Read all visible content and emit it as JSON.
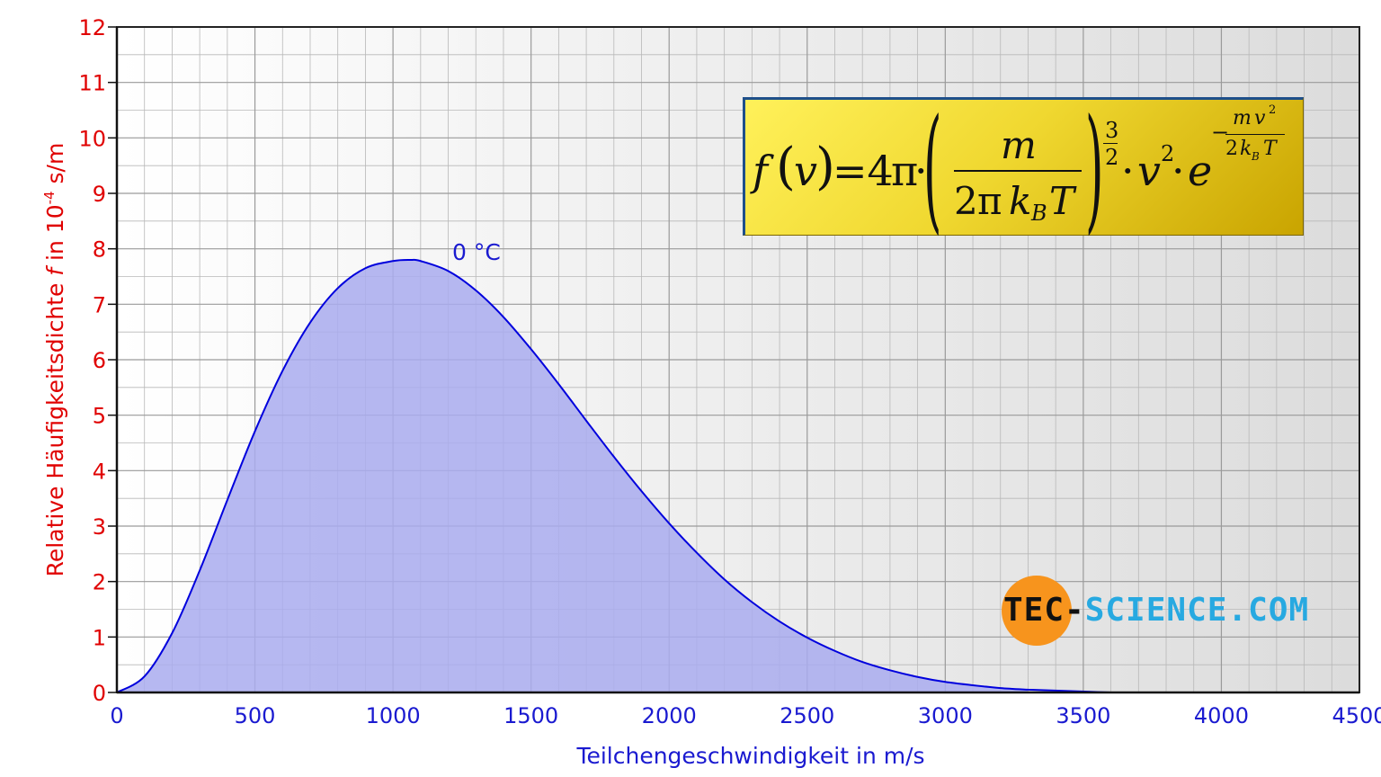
{
  "chart_data": {
    "type": "area",
    "title": "",
    "xlabel": "Teilchengeschwindigkeit in m/s",
    "ylabel_parts": [
      "Relative Häufigkeitsdichte ",
      "f",
      " in 10",
      "-4",
      " s/m"
    ],
    "xlim": [
      0,
      4500
    ],
    "ylim": [
      0,
      12
    ],
    "x_ticks": [
      "0",
      "500",
      "1000",
      "1500",
      "2000",
      "2500",
      "3000",
      "3500",
      "4000",
      "4500"
    ],
    "y_ticks": [
      "0",
      "1",
      "2",
      "3",
      "4",
      "5",
      "6",
      "7",
      "8",
      "9",
      "10",
      "11",
      "12"
    ],
    "grid": true,
    "series": [
      {
        "name": "0 °C",
        "x": [
          0,
          100,
          200,
          300,
          400,
          500,
          600,
          700,
          800,
          900,
          1000,
          1065,
          1100,
          1200,
          1300,
          1400,
          1500,
          1600,
          1700,
          1800,
          1900,
          2000,
          2100,
          2200,
          2300,
          2400,
          2500,
          2600,
          2700,
          2800,
          2900,
          3000,
          3100,
          3200,
          3300
        ],
        "y": [
          0,
          0.29,
          1.07,
          2.2,
          3.47,
          4.71,
          5.8,
          6.67,
          7.29,
          7.65,
          7.78,
          7.8,
          7.78,
          7.6,
          7.25,
          6.77,
          6.19,
          5.56,
          4.9,
          4.25,
          3.63,
          3.05,
          2.52,
          2.04,
          1.63,
          1.28,
          0.99,
          0.75,
          0.55,
          0.4,
          0.28,
          0.19,
          0.13,
          0.08,
          0.05
        ],
        "color": "#0000dd",
        "fill": "#a9acef"
      }
    ]
  },
  "formula": {
    "f": "f",
    "lparen": "(",
    "v": "v",
    "rparen": ")",
    "eq_coef": "=4",
    "pi": "π",
    "dot": "·",
    "m": "m",
    "denom_2": "2",
    "denom_k": "k",
    "denom_B": "B",
    "denom_T": "T",
    "exp_num": "3",
    "exp_den": "2",
    "v2_v": "v",
    "v2_exp": "2",
    "e": "e",
    "e_minus": "−",
    "e_num_m": "m",
    "e_num_v": "v",
    "e_num_exp": "2",
    "e_den": "2",
    "e_den_k": "k",
    "e_den_B": "B",
    "e_den_T": "T"
  },
  "logo": {
    "part1": "TEC-",
    "part2": "SCIENCE.COM",
    "circle_color": "#f7941d"
  }
}
